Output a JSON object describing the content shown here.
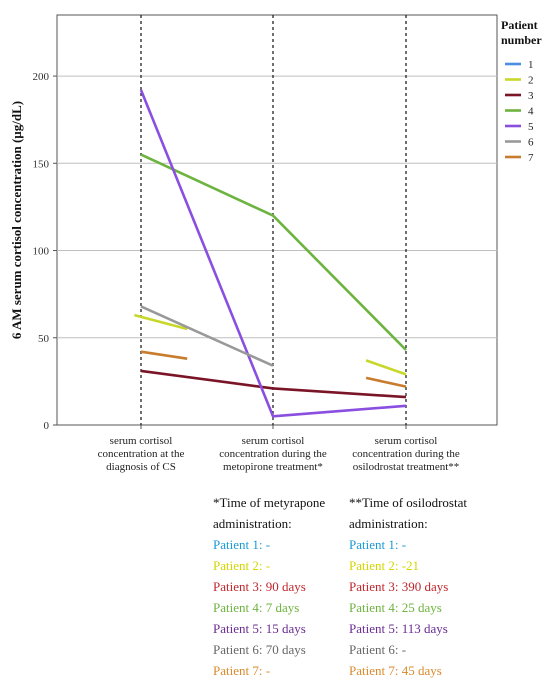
{
  "chart_data": {
    "type": "line",
    "ylabel": "6 AM serum cortisol concentration (µg/dL)",
    "ylim": [
      0,
      235
    ],
    "yticks": [
      0,
      50,
      100,
      150,
      200
    ],
    "grid": true,
    "categories": [
      [
        "serum cortisol",
        "concentration at the",
        "diagnosis of CS"
      ],
      [
        "serum cortisol",
        "concentration during the",
        "metopirone treatment*"
      ],
      [
        "serum cortisol",
        "concentration during the",
        "osilodrostat treatment**"
      ]
    ],
    "legend": {
      "title": [
        "Patient",
        "number"
      ],
      "placement": "top-right"
    },
    "series": [
      {
        "name": "1",
        "color": "#4a90e2",
        "segments": []
      },
      {
        "name": "2",
        "color": "#c8d82a",
        "segments": [
          [
            [
              -0.05,
              63
            ],
            [
              0.35,
              55
            ]
          ],
          [
            [
              1.7,
              37
            ],
            [
              2.0,
              29
            ]
          ]
        ]
      },
      {
        "name": "3",
        "color": "#7a1528",
        "segments": [
          [
            [
              0,
              31
            ],
            [
              1,
              21
            ],
            [
              2,
              16
            ]
          ]
        ]
      },
      {
        "name": "4",
        "color": "#6db33f",
        "segments": [
          [
            [
              0,
              155
            ],
            [
              1,
              120
            ],
            [
              2,
              43
            ]
          ]
        ]
      },
      {
        "name": "5",
        "color": "#8a4fe0",
        "segments": [
          [
            [
              0,
              192
            ],
            [
              1,
              5
            ],
            [
              2,
              11
            ]
          ]
        ]
      },
      {
        "name": "6",
        "color": "#999999",
        "segments": [
          [
            [
              0,
              68
            ],
            [
              1,
              34
            ]
          ]
        ]
      },
      {
        "name": "7",
        "color": "#c87d2e",
        "segments": [
          [
            [
              0,
              42
            ],
            [
              0.35,
              38
            ]
          ],
          [
            [
              1.7,
              27
            ],
            [
              2.0,
              22
            ]
          ]
        ]
      }
    ]
  },
  "notes": {
    "metyrapone": {
      "title": [
        "*Time of metyrapone",
        "administration:"
      ],
      "items": [
        {
          "text": "Patient 1: -",
          "color": "#1a9ad6"
        },
        {
          "text": "Patient 2: -",
          "color": "#d4d400"
        },
        {
          "text": "Patient 3: 90 days",
          "color": "#c0272d"
        },
        {
          "text": "Patient 4: 7 days",
          "color": "#6db33f"
        },
        {
          "text": "Patient 5: 15 days",
          "color": "#6a2c91"
        },
        {
          "text": "Patient 6: 70 days",
          "color": "#666666"
        },
        {
          "text": "Patient 7: -",
          "color": "#d98a2b"
        }
      ]
    },
    "osilodrostat": {
      "title": [
        "**Time of osilodrostat",
        "administration:"
      ],
      "items": [
        {
          "text": "Patient 1: -",
          "color": "#1a9ad6"
        },
        {
          "text": "Patient 2: -21",
          "color": "#d4d400"
        },
        {
          "text": "Patient 3: 390 days",
          "color": "#c0272d"
        },
        {
          "text": "Patient 4: 25 days",
          "color": "#6db33f"
        },
        {
          "text": "Patient 5: 113 days",
          "color": "#6a2c91"
        },
        {
          "text": "Patient 6: -",
          "color": "#666666"
        },
        {
          "text": "Patient 7: 45 days",
          "color": "#d98a2b"
        }
      ]
    }
  }
}
